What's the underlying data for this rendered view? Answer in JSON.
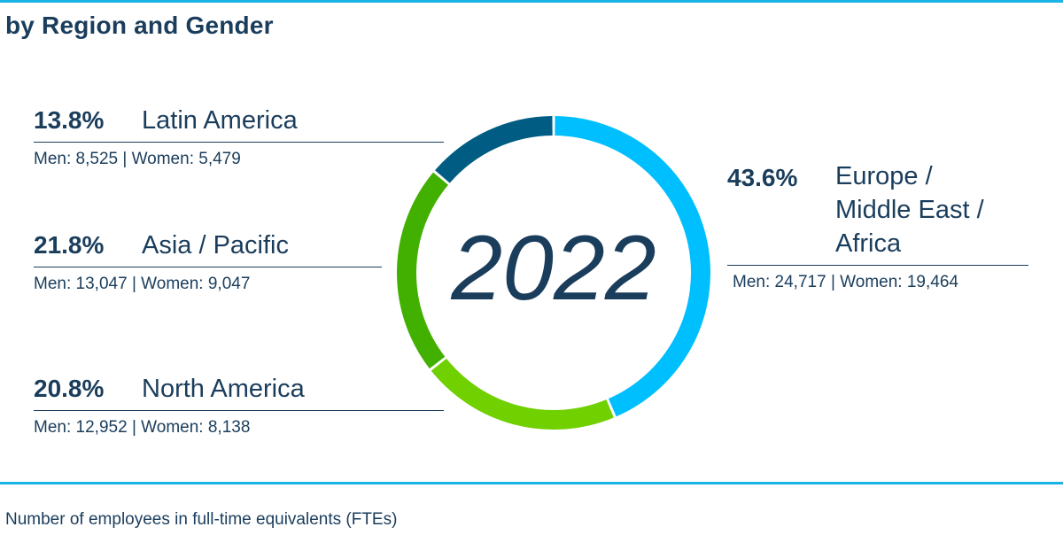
{
  "title": "by Region and Gender",
  "footnote": "Number of employees in full-time equivalents (FTEs)",
  "chart_data": {
    "type": "pie",
    "center_label": "2022",
    "slices": [
      {
        "key": "emea",
        "pct_label": "43.6%",
        "value": 43.6,
        "name": "Europe / Middle East / Africa",
        "name_lines": [
          "Europe /",
          "Middle East /",
          "Africa"
        ],
        "men": "24,717",
        "women": "19,464",
        "color": "#00bfff"
      },
      {
        "key": "na",
        "pct_label": "20.8%",
        "value": 20.8,
        "name": "North America",
        "men": "12,952",
        "women": "8,138",
        "color": "#70d000"
      },
      {
        "key": "asia",
        "pct_label": "21.8%",
        "value": 21.8,
        "name": "Asia / Pacific",
        "men": "13,047",
        "women": "9,047",
        "color": "#41b000"
      },
      {
        "key": "latam",
        "pct_label": "13.8%",
        "value": 13.8,
        "name": "Latin America",
        "men": "8,525",
        "women": "5,479",
        "color": "#005c82"
      }
    ],
    "men_prefix": "Men:",
    "women_prefix": "Women:",
    "separator": "|"
  }
}
